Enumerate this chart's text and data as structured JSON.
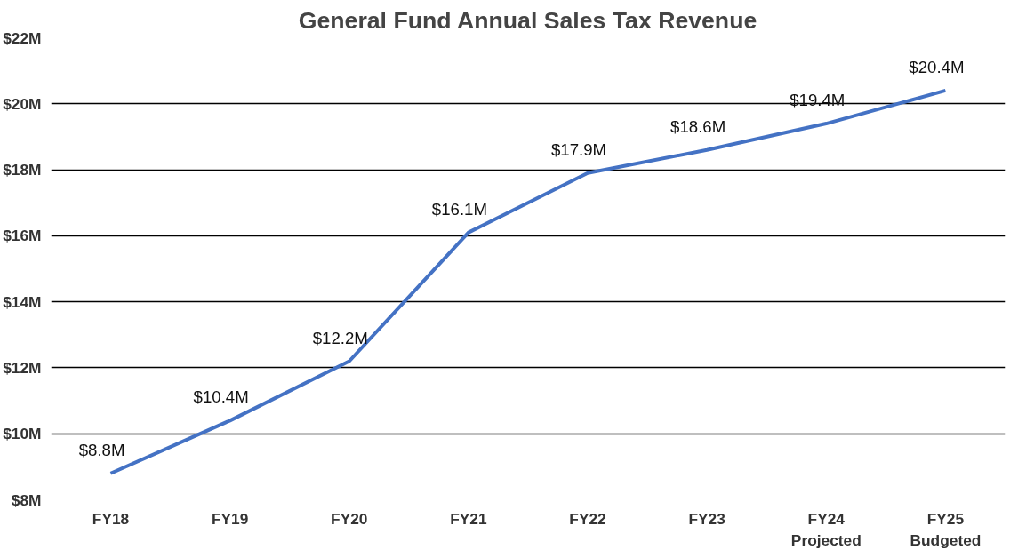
{
  "chart_data": {
    "type": "line",
    "title": "General Fund Annual Sales Tax Revenue",
    "categories": [
      "FY18",
      "FY19",
      "FY20",
      "FY21",
      "FY22",
      "FY23",
      "FY24\nProjected",
      "FY25\nBudgeted"
    ],
    "values": [
      8.8,
      10.4,
      12.2,
      16.1,
      17.9,
      18.6,
      19.4,
      20.4
    ],
    "value_labels": [
      "$8.8M",
      "$10.4M",
      "$12.2M",
      "$16.1M",
      "$17.9M",
      "$18.6M",
      "$19.4M",
      "$20.4M"
    ],
    "color": "#4472c4",
    "ylim": [
      8,
      22
    ],
    "yticks": [
      {
        "value": 8,
        "label": "$8M"
      },
      {
        "value": 10,
        "label": "$10M"
      },
      {
        "value": 12,
        "label": "$12M"
      },
      {
        "value": 14,
        "label": "$14M"
      },
      {
        "value": 16,
        "label": "$16M"
      },
      {
        "value": 18,
        "label": "$18M"
      },
      {
        "value": 20,
        "label": "$20M"
      },
      {
        "value": 22,
        "label": "$22M"
      }
    ],
    "grid": "y",
    "marker": "none",
    "line_style": "solid"
  }
}
